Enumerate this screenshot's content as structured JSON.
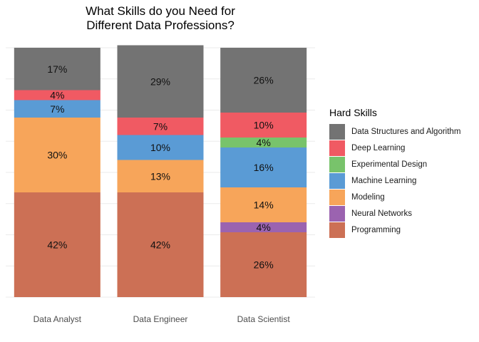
{
  "chart_data": {
    "type": "bar",
    "stacked": true,
    "title_lines": [
      "What Skills do you Need for",
      "Different Data Professions?"
    ],
    "xlabel": "",
    "ylabel": "",
    "ylim": [
      0,
      100
    ],
    "grid": true,
    "legend_position": "right",
    "legend_title": "Hard Skills",
    "categories": [
      "Data Analyst",
      "Data Engineer",
      "Data Scientist"
    ],
    "series": [
      {
        "name": "Programming",
        "color": "#cc7055",
        "values": [
          42,
          42,
          26
        ]
      },
      {
        "name": "Neural Networks",
        "color": "#9b63b0",
        "values": [
          0,
          0,
          4
        ]
      },
      {
        "name": "Modeling",
        "color": "#f7a55a",
        "values": [
          30,
          13,
          14
        ]
      },
      {
        "name": "Machine Learning",
        "color": "#5a9bd5",
        "values": [
          7,
          10,
          16
        ]
      },
      {
        "name": "Experimental Design",
        "color": "#78c36b",
        "values": [
          0,
          0,
          4
        ]
      },
      {
        "name": "Deep Learning",
        "color": "#f05a63",
        "values": [
          4,
          7,
          10
        ]
      },
      {
        "name": "Data Structures and Algorithm",
        "color": "#737373",
        "values": [
          17,
          29,
          26
        ]
      }
    ],
    "legend_order": [
      "Data Structures and Algorithm",
      "Deep Learning",
      "Experimental Design",
      "Machine Learning",
      "Modeling",
      "Neural Networks",
      "Programming"
    ],
    "label_suffix": "%"
  }
}
